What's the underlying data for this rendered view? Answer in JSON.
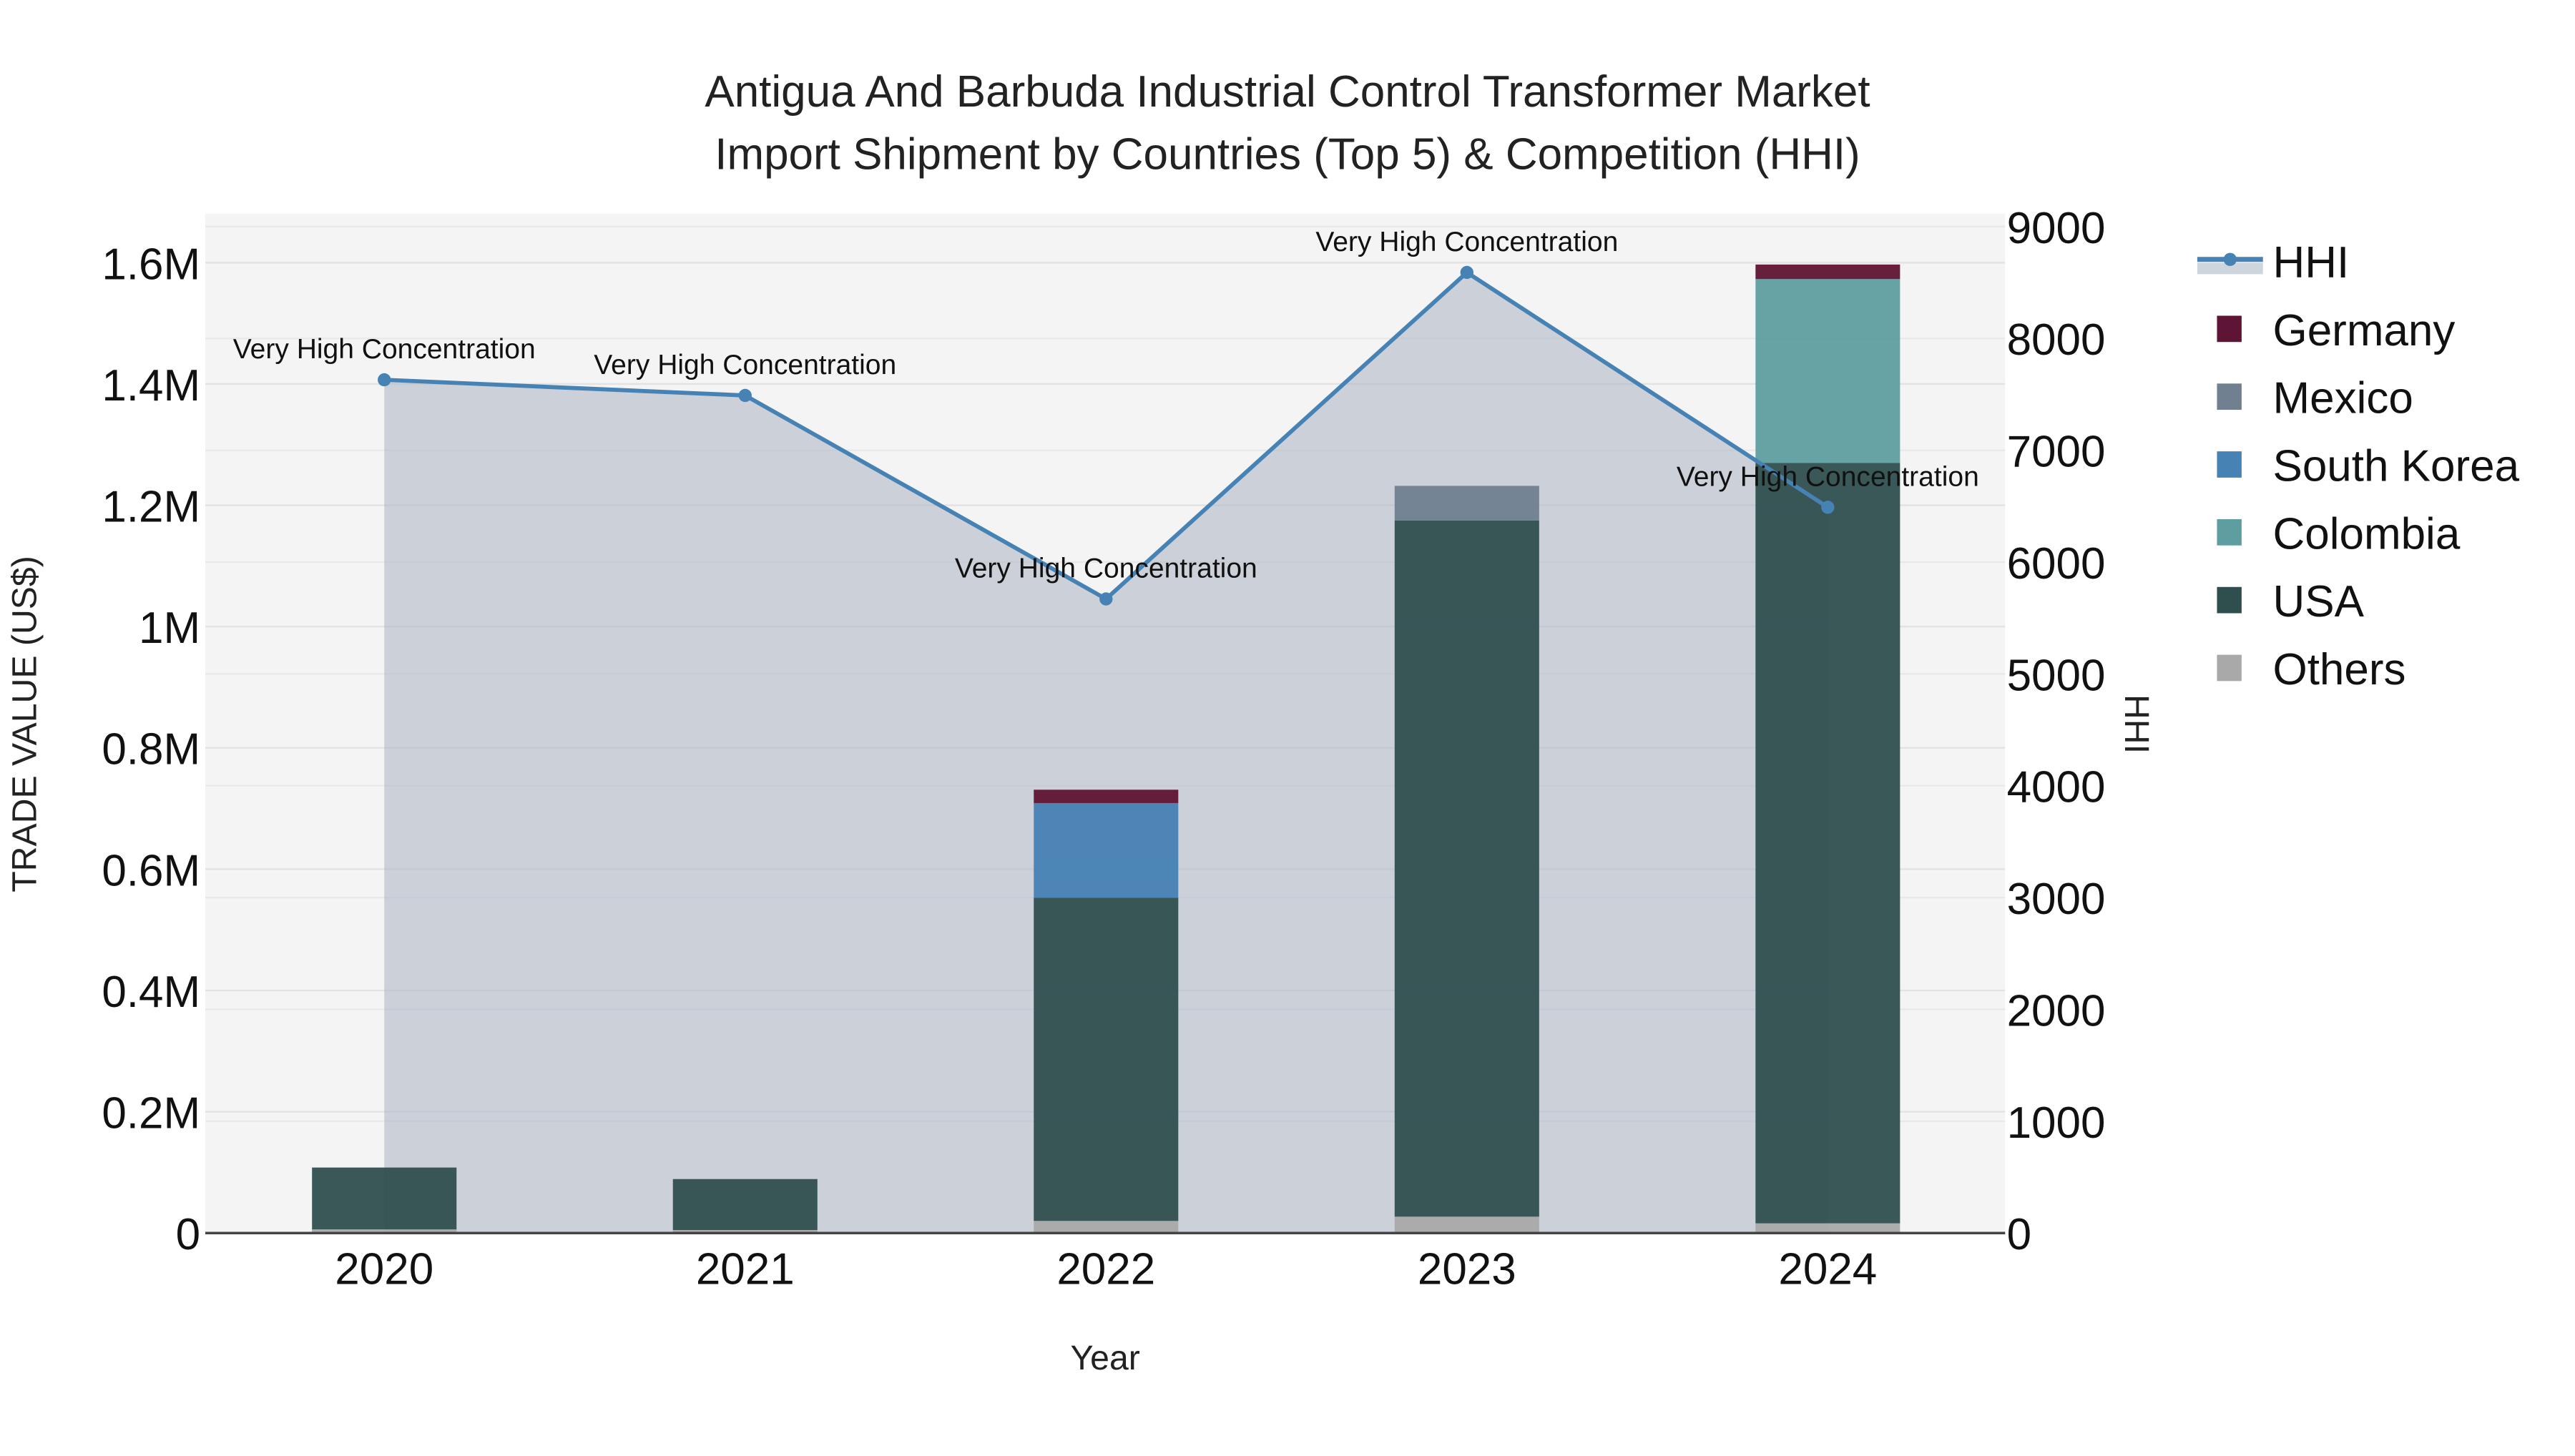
{
  "title_line1": "Antigua And Barbuda Industrial Control Transformer Market",
  "title_line2": "Import Shipment by Countries (Top 5) & Competition (HHI)",
  "xlabel": "Year",
  "ylabel": "TRADE VALUE (US$)",
  "y2label": "HHI",
  "y_ticks": [
    "0",
    "0.2M",
    "0.4M",
    "0.6M",
    "0.8M",
    "1M",
    "1.2M",
    "1.4M",
    "1.6M"
  ],
  "y2_ticks": [
    "0",
    "1000",
    "2000",
    "3000",
    "4000",
    "5000",
    "6000",
    "7000",
    "8000",
    "9000"
  ],
  "x_ticks": [
    "2020",
    "2021",
    "2022",
    "2023",
    "2024"
  ],
  "legend": [
    {
      "label": "HHI",
      "color": "#4682B4",
      "type": "line"
    },
    {
      "label": "Germany",
      "color": "#5E1434",
      "type": "bar"
    },
    {
      "label": "Mexico",
      "color": "#708090",
      "type": "bar"
    },
    {
      "label": "South Korea",
      "color": "#4682B4",
      "type": "bar"
    },
    {
      "label": "Colombia",
      "color": "#5F9EA0",
      "type": "bar"
    },
    {
      "label": "USA",
      "color": "#2F4F4F",
      "type": "bar"
    },
    {
      "label": "Others",
      "color": "#A9A9A9",
      "type": "bar"
    }
  ],
  "annotation_text": "Very High Concentration",
  "chart_data": {
    "type": "bar",
    "title": "Antigua And Barbuda Industrial Control Transformer Market Import Shipment by Countries (Top 5) & Competition (HHI)",
    "xlabel": "Year",
    "ylabel": "TRADE VALUE (US$)",
    "y2label": "HHI",
    "ylim": [
      0,
      1680000
    ],
    "y2lim": [
      0,
      9250
    ],
    "categories": [
      "2020",
      "2021",
      "2022",
      "2023",
      "2024"
    ],
    "stacked": true,
    "series": [
      {
        "name": "Others",
        "color": "#A9A9A9",
        "values": [
          6000,
          5000,
          20000,
          27000,
          16000
        ]
      },
      {
        "name": "USA",
        "color": "#2F4F4F",
        "values": [
          102000,
          84000,
          533000,
          1148000,
          1254000
        ]
      },
      {
        "name": "Colombia",
        "color": "#5F9EA0",
        "values": [
          0,
          0,
          0,
          0,
          303000
        ]
      },
      {
        "name": "South Korea",
        "color": "#4682B4",
        "values": [
          0,
          0,
          156000,
          0,
          0
        ]
      },
      {
        "name": "Mexico",
        "color": "#708090",
        "values": [
          0,
          0,
          0,
          57000,
          0
        ]
      },
      {
        "name": "Germany",
        "color": "#5E1434",
        "values": [
          0,
          0,
          22000,
          0,
          24000
        ]
      }
    ],
    "line_series": {
      "name": "HHI",
      "axis": "y2",
      "color": "#4682B4",
      "values": [
        7630,
        7490,
        5670,
        8590,
        6490
      ],
      "annotations": [
        "Very High Concentration",
        "Very High Concentration",
        "Very High Concentration",
        "Very High Concentration",
        "Very High Concentration"
      ]
    },
    "legend_position": "right",
    "grid": true
  }
}
